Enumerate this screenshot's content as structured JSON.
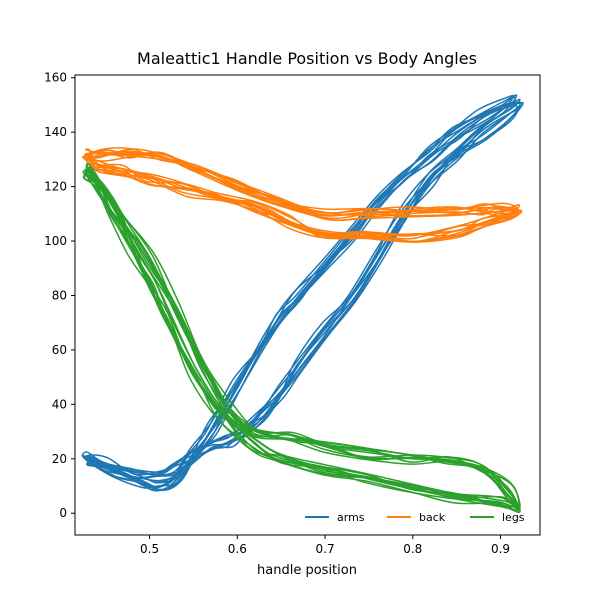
{
  "chart_data": {
    "type": "line",
    "title": "Maleattic1 Handle Position vs Body Angles",
    "xlabel": "handle position",
    "ylabel": "",
    "xlim": [
      0.415,
      0.945
    ],
    "ylim": [
      -8,
      161
    ],
    "xticks": [
      0.5,
      0.6,
      0.7,
      0.8,
      0.9
    ],
    "yticks": [
      0,
      20,
      40,
      60,
      80,
      100,
      120,
      140,
      160
    ],
    "grid": false,
    "legend": "lower-right",
    "series": [
      {
        "name": "arms",
        "color": "#1f77b4",
        "repeats": 10,
        "x": [
          0.43,
          0.46,
          0.49,
          0.51,
          0.53,
          0.55,
          0.57,
          0.6,
          0.63,
          0.65,
          0.67,
          0.7,
          0.73,
          0.76,
          0.79,
          0.82,
          0.85,
          0.88,
          0.905,
          0.92,
          0.91,
          0.88,
          0.85,
          0.82,
          0.79,
          0.76,
          0.73,
          0.7,
          0.67,
          0.65,
          0.63,
          0.61,
          0.59,
          0.57,
          0.55,
          0.53,
          0.51,
          0.48,
          0.45,
          0.43
        ],
        "y": [
          20,
          16,
          12,
          10,
          12,
          21,
          31,
          47,
          63,
          73,
          80,
          92,
          103,
          114,
          124,
          132,
          140,
          146,
          150,
          151,
          147,
          140,
          132,
          123,
          110,
          94,
          80,
          67,
          54,
          45,
          37,
          31,
          27,
          24,
          21,
          17,
          14,
          15,
          18,
          20
        ]
      },
      {
        "name": "back",
        "color": "#ff7f0e",
        "repeats": 10,
        "x": [
          0.43,
          0.45,
          0.48,
          0.51,
          0.55,
          0.6,
          0.65,
          0.7,
          0.75,
          0.8,
          0.85,
          0.88,
          0.9,
          0.92,
          0.91,
          0.88,
          0.85,
          0.8,
          0.75,
          0.7,
          0.66,
          0.62,
          0.58,
          0.54,
          0.5,
          0.47,
          0.44,
          0.43
        ],
        "y": [
          131,
          132,
          132,
          131,
          127,
          120,
          114,
          109,
          110,
          110,
          111,
          111,
          111,
          111,
          109,
          106,
          103,
          101,
          102,
          102,
          107,
          112,
          116,
          119,
          122,
          125,
          128,
          131
        ]
      },
      {
        "name": "legs",
        "color": "#2ca02c",
        "repeats": 10,
        "x": [
          0.43,
          0.44,
          0.46,
          0.48,
          0.5,
          0.52,
          0.55,
          0.58,
          0.62,
          0.65,
          0.7,
          0.75,
          0.8,
          0.85,
          0.9,
          0.92,
          0.91,
          0.88,
          0.84,
          0.8,
          0.75,
          0.7,
          0.66,
          0.62,
          0.59,
          0.56,
          0.53,
          0.5,
          0.47,
          0.45,
          0.43
        ],
        "y": [
          125,
          122,
          110,
          97,
          84,
          72,
          52,
          37,
          25,
          20,
          16,
          13,
          9,
          6,
          4,
          2,
          8,
          16,
          19,
          20,
          22,
          25,
          28,
          30,
          38,
          55,
          75,
          93,
          108,
          118,
          125
        ]
      }
    ]
  }
}
